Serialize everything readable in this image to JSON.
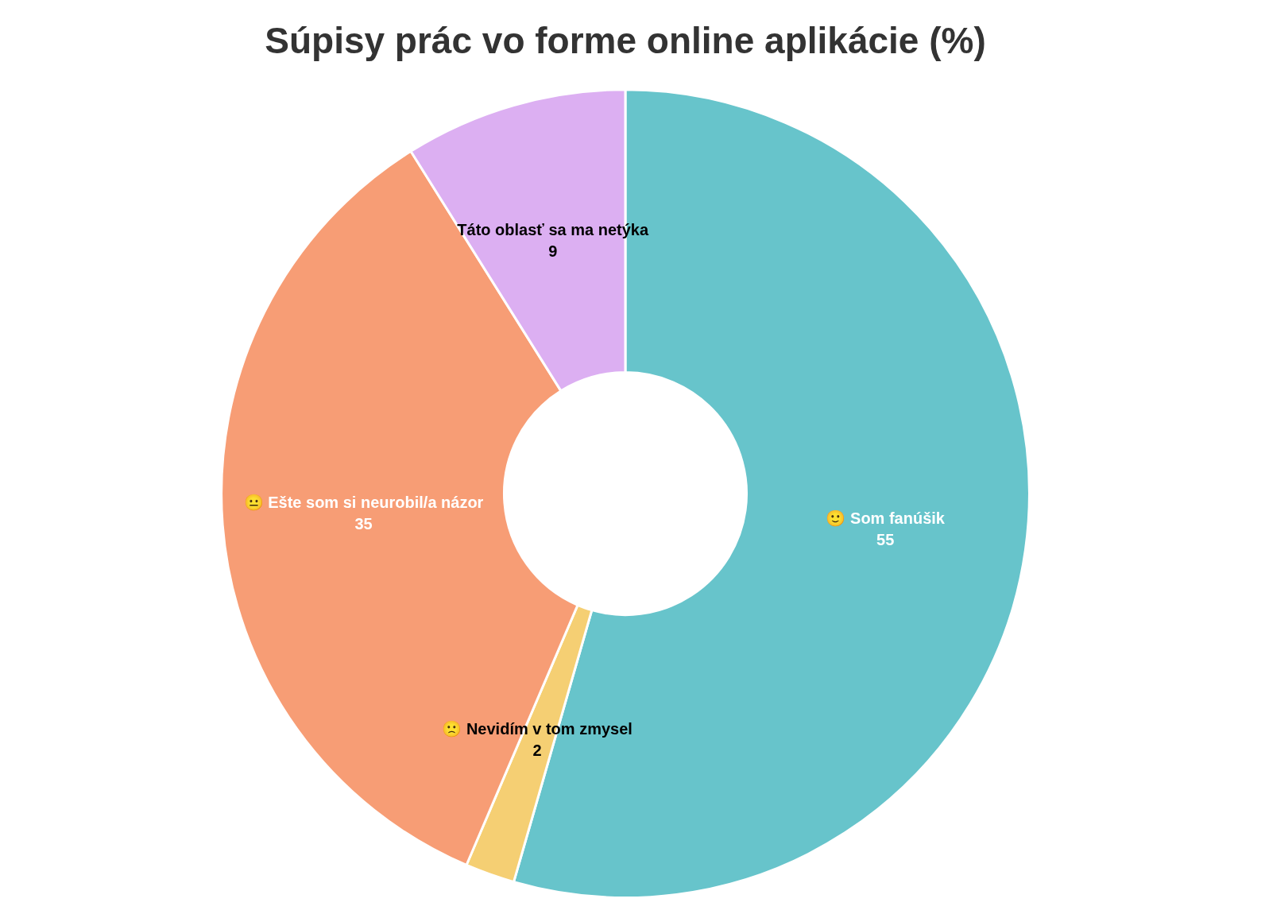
{
  "chart_data": {
    "type": "donut",
    "title": "Súpisy prác vo forme online aplikácie (%)",
    "categories": [
      "🙂 Som fanúšik",
      "🙁 Nevidím v tom zmysel",
      "😐 Ešte som si neurobil/a názor",
      "Táto oblasť sa ma netýka"
    ],
    "values": [
      55,
      2,
      35,
      9
    ],
    "colors": [
      "#67c4cb",
      "#f5cf73",
      "#f79d75",
      "#dcaff2"
    ],
    "data_labels": true,
    "legend": false
  }
}
